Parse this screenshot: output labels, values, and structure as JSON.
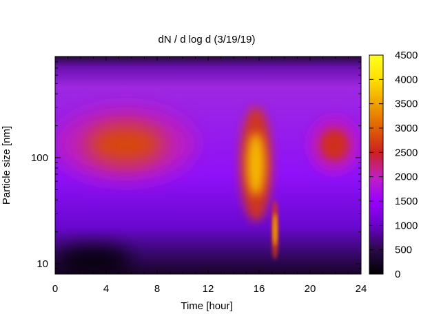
{
  "chart_data": {
    "type": "heatmap",
    "title": "dN / d log d (3/19/19)",
    "xlabel": "Time [hour]",
    "ylabel": "Particle size [nm]",
    "x_range": [
      0,
      24
    ],
    "y_range": [
      8,
      900
    ],
    "y_scale": "log",
    "x_ticks": [
      "0",
      "4",
      "8",
      "12",
      "16",
      "20",
      "24"
    ],
    "y_ticks": [
      "10",
      "100"
    ],
    "colorbar": {
      "range": [
        0,
        4500
      ],
      "ticks": [
        "0",
        "500",
        "1000",
        "1500",
        "2000",
        "2500",
        "3000",
        "3500",
        "4000",
        "4500"
      ],
      "colormap": [
        "#000000",
        "#2a0a4a",
        "#6a00c8",
        "#9a00ff",
        "#c020c0",
        "#cc2020",
        "#e06000",
        "#f0a000",
        "#ffe000",
        "#ffff20"
      ]
    },
    "features": [
      {
        "name": "accumulation band 0-11 h",
        "x": [
          0,
          11
        ],
        "y": [
          60,
          300
        ],
        "peak": 2800
      },
      {
        "name": "plume 14-17 h",
        "x": [
          14.5,
          17
        ],
        "y": [
          25,
          300
        ],
        "peak": 3700
      },
      {
        "name": "narrow spike ~17.2 h",
        "x": [
          17,
          17.5
        ],
        "y": [
          11,
          40
        ],
        "peak": 3700
      },
      {
        "name": "band 20-24 h",
        "x": [
          19.8,
          24
        ],
        "y": [
          70,
          250
        ],
        "peak": 2600
      },
      {
        "name": "low-size dark region",
        "x": [
          0,
          6
        ],
        "y": [
          8,
          15
        ],
        "peak": 0
      }
    ]
  }
}
